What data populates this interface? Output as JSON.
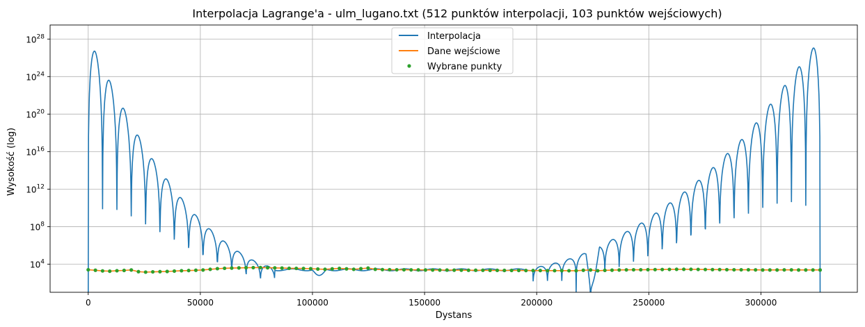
{
  "chart_data": {
    "type": "line",
    "title": "Interpolacja Lagrange'a - ulm_lugano.txt (512 punktów interpolacji, 103 punktów wejściowych)",
    "xlabel": "Dystans",
    "ylabel": "Wysokość (log)",
    "yscale": "log",
    "xlim": [
      -17000,
      343000
    ],
    "ylim_log10": [
      1.0,
      29.5
    ],
    "x_ticks": [
      0,
      50000,
      100000,
      150000,
      200000,
      250000,
      300000
    ],
    "x_tick_labels": [
      "0",
      "50000",
      "100000",
      "150000",
      "200000",
      "250000",
      "300000"
    ],
    "y_ticks_log10": [
      4,
      8,
      12,
      16,
      20,
      24,
      28
    ],
    "y_tick_bases": [
      "10",
      "10",
      "10",
      "10",
      "10",
      "10",
      "10"
    ],
    "y_tick_exponents": [
      "4",
      "8",
      "12",
      "16",
      "20",
      "24",
      "28"
    ],
    "grid": true,
    "legend_placement": "top-center",
    "series": [
      {
        "name": "Interpolacja",
        "color": "#1f77b4",
        "style": "line",
        "note_peaks_log10": [
          28.2,
          25.0,
          22.0,
          19.0,
          16.3,
          14.0,
          12.0,
          10.0,
          8.4,
          7.0,
          5.8,
          4.8,
          4.0,
          3.6,
          3.3,
          3.1
        ],
        "peaks_left_x_start": 0,
        "peaks_right_log10": [
          3.4,
          3.6,
          3.9,
          4.3,
          4.8,
          5.4,
          6.2,
          7.0,
          7.9,
          8.8,
          10.0,
          11.0,
          12.3,
          13.5,
          15.0,
          16.5,
          18.0,
          20.0,
          22.0,
          24.0,
          26.0,
          28.0
        ],
        "baseline_log10": 3.4
      },
      {
        "name": "Dane wejściowe",
        "color": "#ff7f0e",
        "style": "line"
      },
      {
        "name": "Wybrane punkty",
        "color": "#2ca02c",
        "style": "points",
        "x": [
          0,
          3200,
          6400,
          9600,
          12800,
          16000,
          19200,
          22400,
          25600,
          28800,
          32000,
          35200,
          38400,
          41600,
          44800,
          48000,
          51200,
          54400,
          57600,
          60800,
          64000,
          67200,
          70400,
          73600,
          76800,
          80000,
          83200,
          86400,
          89600,
          92800,
          96000,
          99200,
          102400,
          105600,
          108800,
          112000,
          115200,
          118400,
          121600,
          124800,
          128000,
          131200,
          134400,
          137600,
          140800,
          144000,
          147200,
          150400,
          153600,
          156800,
          160000,
          163200,
          166400,
          169600,
          172800,
          176000,
          179200,
          182400,
          185600,
          188800,
          192000,
          195200,
          198400,
          201600,
          204800,
          208000,
          211200,
          214400,
          217600,
          220800,
          224000,
          227200,
          230400,
          233600,
          236800,
          240000,
          243200,
          246400,
          249600,
          252800,
          256000,
          259200,
          262400,
          265600,
          268800,
          272000,
          275200,
          278400,
          281600,
          284800,
          288000,
          291200,
          294400,
          297600,
          300800,
          304000,
          307200,
          310400,
          313600,
          316800,
          320000,
          323200,
          326400
        ],
        "y_log10": [
          3.4,
          3.35,
          3.28,
          3.25,
          3.3,
          3.33,
          3.38,
          3.2,
          3.15,
          3.18,
          3.2,
          3.22,
          3.26,
          3.3,
          3.32,
          3.35,
          3.38,
          3.45,
          3.52,
          3.56,
          3.58,
          3.6,
          3.62,
          3.63,
          3.64,
          3.62,
          3.6,
          3.58,
          3.56,
          3.55,
          3.54,
          3.52,
          3.48,
          3.45,
          3.5,
          3.55,
          3.5,
          3.45,
          3.52,
          3.58,
          3.45,
          3.42,
          3.41,
          3.4,
          3.4,
          3.39,
          3.39,
          3.38,
          3.38,
          3.37,
          3.37,
          3.36,
          3.36,
          3.35,
          3.35,
          3.35,
          3.34,
          3.34,
          3.33,
          3.33,
          3.33,
          3.32,
          3.32,
          3.32,
          3.31,
          3.31,
          3.31,
          3.3,
          3.3,
          3.35,
          3.38,
          3.3,
          3.34,
          3.36,
          3.38,
          3.39,
          3.4,
          3.4,
          3.41,
          3.42,
          3.43,
          3.44,
          3.45,
          3.45,
          3.45,
          3.44,
          3.43,
          3.42,
          3.42,
          3.41,
          3.4,
          3.4,
          3.4,
          3.39,
          3.38,
          3.38,
          3.38,
          3.39,
          3.39,
          3.38,
          3.38,
          3.38,
          3.38
        ]
      }
    ]
  }
}
